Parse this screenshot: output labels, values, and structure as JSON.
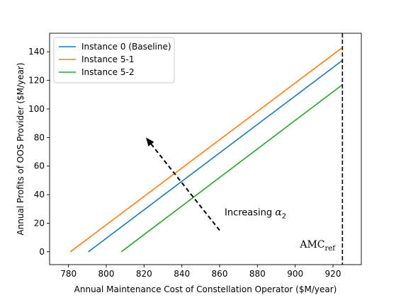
{
  "chart_data": {
    "type": "line",
    "xlabel": "Annual Maintenance Cost of Constellation Operator ($M/year)",
    "ylabel": "Annual Profits of OOS Provider ($M/year)",
    "xlim": [
      770,
      935
    ],
    "ylim": [
      -9,
      153
    ],
    "x_ticks": [
      780,
      800,
      820,
      840,
      860,
      880,
      900,
      920
    ],
    "y_ticks": [
      0,
      20,
      40,
      60,
      80,
      100,
      120,
      140
    ],
    "grid": false,
    "legend_position": "top-left",
    "series": [
      {
        "name": "Instance 0 (Baseline)",
        "color": "#1f77b4",
        "x": [
          790.5,
          925.0
        ],
        "y": [
          0,
          134
        ]
      },
      {
        "name": "Instance 5-1",
        "color": "#ff7f0e",
        "x": [
          781.0,
          925.0
        ],
        "y": [
          0,
          143
        ]
      },
      {
        "name": "Instance 5-2",
        "color": "#2ca02c",
        "x": [
          808.0,
          925.0
        ],
        "y": [
          0,
          117
        ]
      }
    ],
    "reference_line": {
      "x": 925,
      "label_main": "AMC",
      "label_sub": "ref",
      "style": "dashed"
    },
    "arrow_annotation": {
      "from": [
        860,
        15
      ],
      "to": [
        821,
        80
      ],
      "label_text": "Increasing ",
      "label_symbol": "α",
      "label_symbol_sub": "2"
    }
  }
}
